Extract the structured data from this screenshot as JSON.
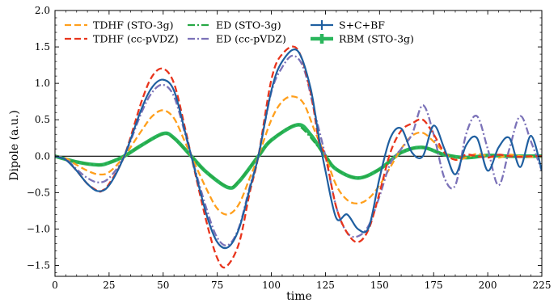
{
  "chart_data": {
    "type": "line",
    "title": "",
    "xlabel": "time",
    "ylabel": "Dipole (a.u.)",
    "xlim": [
      0,
      225
    ],
    "ylim": [
      -1.65,
      2.0
    ],
    "xticks": [
      0,
      25,
      50,
      75,
      100,
      125,
      150,
      175,
      200,
      225
    ],
    "yticks": [
      -1.5,
      -1.0,
      -0.5,
      0.0,
      0.5,
      1.0,
      1.5,
      2.0
    ],
    "ytick_labels": [
      "−1.5",
      "−1.0",
      "−0.5",
      "0.0",
      "0.5",
      "1.0",
      "1.5",
      "2.0"
    ],
    "grid": false,
    "zero_line": true,
    "legend": {
      "placement": "top",
      "columns": 4
    },
    "series": [
      {
        "name": "TDHF (STO-3g)",
        "color": "#ff9f1c",
        "style": "dashed",
        "x": [
          0,
          5,
          10,
          15,
          20,
          25,
          32,
          40,
          45,
          50,
          55,
          60,
          63,
          70,
          75,
          80,
          85,
          90,
          94,
          100,
          105,
          110,
          115,
          120,
          125,
          130,
          135,
          140,
          145,
          150,
          155,
          160,
          165,
          170,
          175,
          180,
          185,
          190,
          195,
          200,
          205,
          210,
          215,
          220,
          225
        ],
        "y": [
          0,
          -0.03,
          -0.12,
          -0.2,
          -0.25,
          -0.22,
          0,
          0.35,
          0.55,
          0.63,
          0.52,
          0.2,
          0,
          -0.45,
          -0.72,
          -0.8,
          -0.66,
          -0.3,
          0,
          0.5,
          0.75,
          0.82,
          0.72,
          0.35,
          0,
          -0.4,
          -0.6,
          -0.65,
          -0.58,
          -0.4,
          -0.15,
          0.1,
          0.28,
          0.32,
          0.2,
          0.05,
          -0.05,
          -0.02,
          0.03,
          0.0,
          -0.02,
          0.02,
          0.0,
          -0.01,
          0.0
        ]
      },
      {
        "name": "TDHF (cc-pVDZ)",
        "color": "#e8341c",
        "style": "dashed",
        "x": [
          0,
          5,
          10,
          15,
          20,
          22,
          25,
          32,
          40,
          45,
          50,
          55,
          60,
          63,
          70,
          75,
          79,
          85,
          90,
          94,
          100,
          105,
          112,
          118,
          122,
          125,
          130,
          135,
          140,
          145,
          150,
          155,
          160,
          165,
          170,
          175,
          180,
          185,
          190,
          195,
          200,
          205,
          210,
          215,
          220,
          225
        ],
        "y": [
          0,
          -0.05,
          -0.2,
          -0.38,
          -0.48,
          -0.47,
          -0.38,
          0,
          0.75,
          1.1,
          1.2,
          1.0,
          0.4,
          0,
          -0.9,
          -1.4,
          -1.52,
          -1.2,
          -0.5,
          0,
          1.05,
          1.4,
          1.47,
          0.9,
          0.2,
          0,
          -0.7,
          -1.05,
          -1.18,
          -1.0,
          -0.5,
          0.05,
          0.35,
          0.45,
          0.5,
          0.3,
          0.05,
          -0.05,
          0.02,
          0.0,
          -0.02,
          0.02,
          0.0,
          -0.01,
          0.0,
          0.0
        ]
      },
      {
        "name": "ED (STO-3g)",
        "color": "#27a845",
        "style": "dashdot",
        "x": [
          0,
          10,
          20,
          25,
          32,
          40,
          50,
          55,
          63,
          70,
          80,
          85,
          94,
          100,
          110,
          115,
          125,
          130,
          140,
          150,
          160,
          170,
          180,
          190,
          200,
          210,
          225
        ],
        "y": [
          0,
          -0.08,
          -0.12,
          -0.09,
          0,
          0.15,
          0.3,
          0.24,
          0,
          -0.22,
          -0.42,
          -0.34,
          0,
          0.22,
          0.42,
          0.36,
          0,
          -0.18,
          -0.3,
          -0.18,
          0.05,
          0.12,
          0.02,
          -0.02,
          0.01,
          0.0,
          0.0
        ]
      },
      {
        "name": "ED (cc-pVDZ)",
        "color": "#7b72b8",
        "style": "dashdot",
        "x": [
          0,
          5,
          10,
          15,
          20,
          25,
          32,
          40,
          45,
          50,
          55,
          60,
          63,
          70,
          75,
          80,
          85,
          90,
          94,
          100,
          105,
          110,
          115,
          120,
          125,
          130,
          135,
          140,
          145,
          150,
          155,
          160,
          165,
          170,
          175,
          180,
          185,
          190,
          195,
          200,
          205,
          210,
          215,
          220,
          225
        ],
        "y": [
          0,
          -0.04,
          -0.18,
          -0.3,
          -0.36,
          -0.3,
          0,
          0.6,
          0.88,
          0.98,
          0.82,
          0.32,
          0,
          -0.72,
          -1.12,
          -1.22,
          -0.98,
          -0.42,
          0,
          0.88,
          1.22,
          1.38,
          1.2,
          0.6,
          0,
          -0.7,
          -1.05,
          -1.1,
          -0.95,
          -0.55,
          -0.1,
          0.1,
          0.3,
          0.7,
          0.3,
          -0.3,
          -0.4,
          0.3,
          0.55,
          0.1,
          -0.4,
          0.1,
          0.55,
          0.2,
          -0.2
        ]
      },
      {
        "name": "S+C+BF",
        "color": "#1f5fa0",
        "style": "solid",
        "x": [
          0,
          5,
          10,
          15,
          20,
          25,
          32,
          40,
          45,
          50,
          55,
          60,
          63,
          70,
          75,
          80,
          85,
          90,
          94,
          100,
          105,
          112,
          118,
          122,
          125,
          130,
          135,
          140,
          145,
          150,
          155,
          160,
          165,
          170,
          175,
          180,
          185,
          190,
          195,
          200,
          205,
          210,
          215,
          220,
          225
        ],
        "y": [
          0,
          -0.05,
          -0.2,
          -0.38,
          -0.48,
          -0.4,
          0,
          0.65,
          0.95,
          1.05,
          0.9,
          0.35,
          0,
          -0.8,
          -1.18,
          -1.25,
          -1.0,
          -0.45,
          0,
          0.9,
          1.3,
          1.45,
          0.95,
          0.25,
          -0.2,
          -0.85,
          -0.8,
          -1.0,
          -0.98,
          -0.3,
          0.25,
          0.38,
          0.05,
          0.0,
          0.42,
          0.1,
          -0.25,
          0.15,
          0.25,
          -0.2,
          0.12,
          0.25,
          -0.15,
          0.28,
          -0.2
        ]
      },
      {
        "name": "RBM (STO-3g)",
        "color": "#2ab65c",
        "style": "solid-thick",
        "x": [
          0,
          10,
          20,
          25,
          32,
          40,
          50,
          55,
          63,
          70,
          80,
          85,
          94,
          100,
          112,
          118,
          125,
          130,
          140,
          150,
          160,
          170,
          180,
          190,
          200,
          210,
          225
        ],
        "y": [
          0,
          -0.08,
          -0.12,
          -0.09,
          0,
          0.15,
          0.31,
          0.25,
          0,
          -0.22,
          -0.43,
          -0.35,
          0,
          0.22,
          0.43,
          0.3,
          0,
          -0.18,
          -0.3,
          -0.18,
          0.05,
          0.12,
          0.02,
          -0.02,
          0.01,
          0.0,
          0.0
        ]
      }
    ]
  }
}
